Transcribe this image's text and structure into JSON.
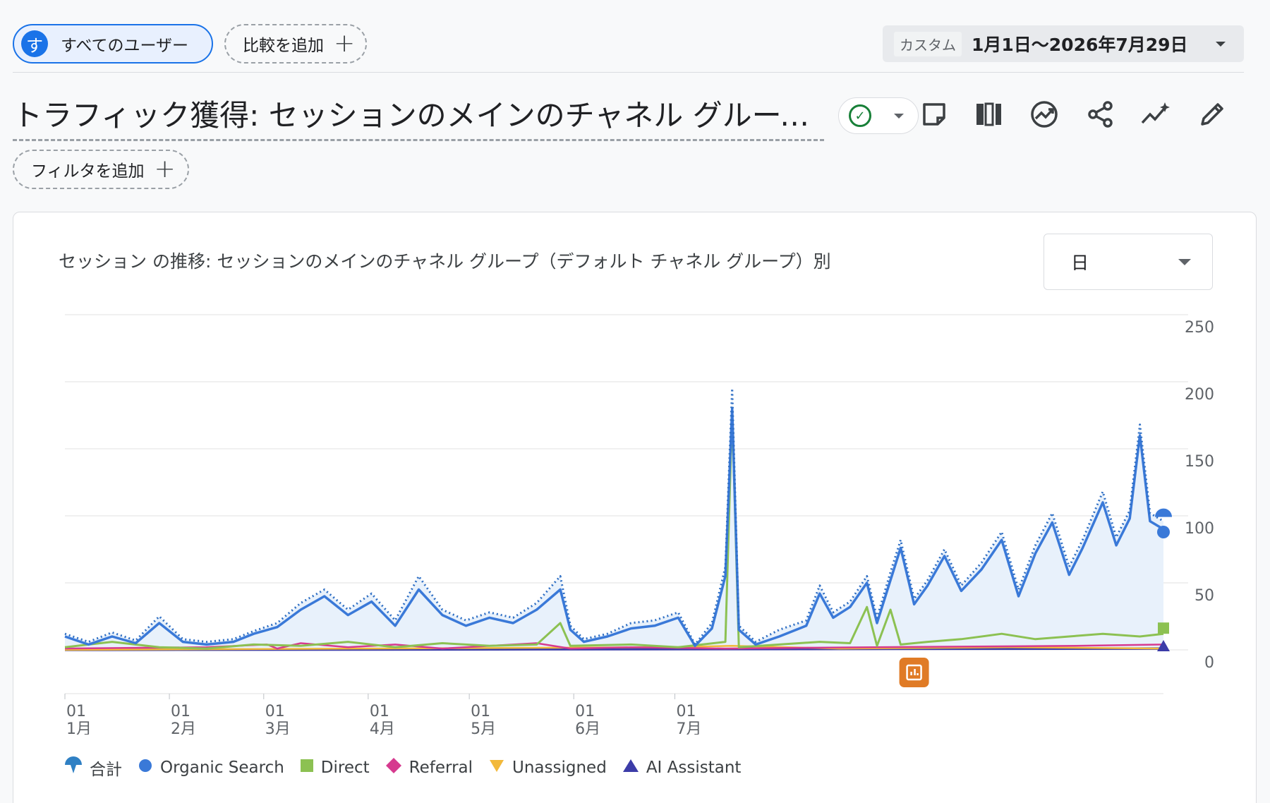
{
  "segment": {
    "avatar": "す",
    "label": "すべてのユーザー"
  },
  "compare": {
    "label": "比較を追加"
  },
  "date_picker": {
    "tag": "カスタム",
    "range": "1月1日〜2026年7月29日"
  },
  "page": {
    "title": "トラフィック獲得: セッションのメインのチャネル グループ（デフォルト チャネル グループ）"
  },
  "toolbar": {
    "status_icon": "check-circle-icon",
    "icons": [
      "note-icon",
      "compare-columns-icon",
      "insights-icon",
      "share-icon",
      "sparkle-trend-icon",
      "edit-icon"
    ]
  },
  "filter": {
    "label": "フィルタを追加"
  },
  "card": {
    "title": "セッション の推移: セッションのメインのチャネル グループ（デフォルト チャネル グループ）別",
    "period": "日"
  },
  "colors": {
    "organic": "#3a79d8",
    "direct": "#8cc152",
    "referral": "#d63a8f",
    "unassigned": "#f2b93b",
    "ai": "#3c3ca8",
    "total_fill": "#e8f1fb",
    "annotation": "#e07b26"
  },
  "chart_data": {
    "type": "line",
    "y_ticks": [
      "250",
      "200",
      "150",
      "100",
      "50",
      "0"
    ],
    "ylim": [
      0,
      250
    ],
    "x_ticks": [
      {
        "day": "01",
        "month": "1月"
      },
      {
        "day": "01",
        "month": "2月"
      },
      {
        "day": "01",
        "month": "3月"
      },
      {
        "day": "01",
        "month": "4月"
      },
      {
        "day": "01",
        "month": "5月"
      },
      {
        "day": "01",
        "month": "6月"
      },
      {
        "day": "01",
        "month": "7月"
      }
    ],
    "month_start_days": [
      0,
      31,
      59,
      90,
      120,
      151,
      181
    ],
    "series": [
      {
        "name": "合計",
        "key": "total",
        "points": [
          [
            0,
            12
          ],
          [
            7,
            6
          ],
          [
            14,
            13
          ],
          [
            21,
            7
          ],
          [
            28,
            25
          ],
          [
            35,
            8
          ],
          [
            42,
            6
          ],
          [
            50,
            8
          ],
          [
            56,
            14
          ],
          [
            63,
            20
          ],
          [
            70,
            35
          ],
          [
            77,
            45
          ],
          [
            84,
            30
          ],
          [
            91,
            42
          ],
          [
            98,
            22
          ],
          [
            105,
            55
          ],
          [
            112,
            30
          ],
          [
            119,
            22
          ],
          [
            126,
            28
          ],
          [
            133,
            24
          ],
          [
            140,
            35
          ],
          [
            147,
            55
          ],
          [
            150,
            18
          ],
          [
            154,
            8
          ],
          [
            161,
            12
          ],
          [
            168,
            20
          ],
          [
            175,
            22
          ],
          [
            182,
            28
          ],
          [
            187,
            4
          ],
          [
            192,
            20
          ],
          [
            196,
            62
          ],
          [
            198,
            195
          ],
          [
            200,
            18
          ],
          [
            205,
            6
          ],
          [
            212,
            15
          ],
          [
            220,
            22
          ],
          [
            224,
            48
          ],
          [
            228,
            28
          ],
          [
            233,
            36
          ],
          [
            238,
            55
          ],
          [
            241,
            24
          ],
          [
            245,
            58
          ],
          [
            248,
            82
          ],
          [
            252,
            38
          ],
          [
            256,
            52
          ],
          [
            261,
            75
          ],
          [
            266,
            48
          ],
          [
            272,
            65
          ],
          [
            278,
            88
          ],
          [
            283,
            45
          ],
          [
            288,
            78
          ],
          [
            293,
            102
          ],
          [
            298,
            62
          ],
          [
            302,
            82
          ],
          [
            308,
            118
          ],
          [
            312,
            84
          ],
          [
            316,
            104
          ],
          [
            319,
            168
          ],
          [
            322,
            102
          ],
          [
            326,
            96
          ]
        ]
      },
      {
        "name": "Organic Search",
        "key": "organic",
        "points": [
          [
            0,
            10
          ],
          [
            7,
            4
          ],
          [
            14,
            10
          ],
          [
            21,
            5
          ],
          [
            28,
            20
          ],
          [
            35,
            6
          ],
          [
            42,
            4
          ],
          [
            50,
            6
          ],
          [
            56,
            12
          ],
          [
            63,
            17
          ],
          [
            70,
            30
          ],
          [
            77,
            40
          ],
          [
            84,
            26
          ],
          [
            91,
            36
          ],
          [
            98,
            18
          ],
          [
            105,
            45
          ],
          [
            112,
            26
          ],
          [
            119,
            18
          ],
          [
            126,
            24
          ],
          [
            133,
            20
          ],
          [
            140,
            30
          ],
          [
            147,
            45
          ],
          [
            150,
            15
          ],
          [
            154,
            6
          ],
          [
            161,
            10
          ],
          [
            168,
            16
          ],
          [
            175,
            18
          ],
          [
            182,
            24
          ],
          [
            187,
            3
          ],
          [
            192,
            16
          ],
          [
            196,
            55
          ],
          [
            198,
            180
          ],
          [
            200,
            15
          ],
          [
            205,
            4
          ],
          [
            212,
            10
          ],
          [
            220,
            18
          ],
          [
            224,
            42
          ],
          [
            228,
            24
          ],
          [
            233,
            32
          ],
          [
            238,
            50
          ],
          [
            241,
            20
          ],
          [
            245,
            52
          ],
          [
            248,
            76
          ],
          [
            252,
            34
          ],
          [
            256,
            48
          ],
          [
            261,
            70
          ],
          [
            266,
            44
          ],
          [
            272,
            60
          ],
          [
            278,
            82
          ],
          [
            283,
            40
          ],
          [
            288,
            72
          ],
          [
            293,
            95
          ],
          [
            298,
            56
          ],
          [
            302,
            76
          ],
          [
            308,
            110
          ],
          [
            312,
            78
          ],
          [
            316,
            98
          ],
          [
            319,
            160
          ],
          [
            322,
            96
          ],
          [
            326,
            90
          ]
        ]
      },
      {
        "name": "Direct",
        "key": "direct",
        "points": [
          [
            0,
            2
          ],
          [
            14,
            6
          ],
          [
            28,
            2
          ],
          [
            42,
            1
          ],
          [
            56,
            4
          ],
          [
            70,
            3
          ],
          [
            84,
            6
          ],
          [
            98,
            2
          ],
          [
            112,
            5
          ],
          [
            126,
            3
          ],
          [
            140,
            4
          ],
          [
            147,
            20
          ],
          [
            150,
            3
          ],
          [
            168,
            4
          ],
          [
            182,
            2
          ],
          [
            196,
            6
          ],
          [
            198,
            178
          ],
          [
            200,
            2
          ],
          [
            212,
            4
          ],
          [
            224,
            6
          ],
          [
            233,
            5
          ],
          [
            238,
            32
          ],
          [
            241,
            3
          ],
          [
            245,
            30
          ],
          [
            248,
            4
          ],
          [
            256,
            6
          ],
          [
            266,
            8
          ],
          [
            278,
            12
          ],
          [
            288,
            8
          ],
          [
            298,
            10
          ],
          [
            308,
            12
          ],
          [
            319,
            10
          ],
          [
            326,
            12
          ]
        ]
      },
      {
        "name": "Referral",
        "key": "referral",
        "points": [
          [
            0,
            1
          ],
          [
            42,
            2
          ],
          [
            60,
            4
          ],
          [
            63,
            1
          ],
          [
            70,
            5
          ],
          [
            84,
            2
          ],
          [
            98,
            4
          ],
          [
            112,
            1
          ],
          [
            140,
            5
          ],
          [
            150,
            1
          ],
          [
            168,
            2
          ],
          [
            196,
            1
          ],
          [
            240,
            2
          ],
          [
            300,
            3
          ],
          [
            326,
            4
          ]
        ]
      },
      {
        "name": "Unassigned",
        "key": "unassigned",
        "points": [
          [
            0,
            0
          ],
          [
            90,
            1
          ],
          [
            180,
            2
          ],
          [
            198,
            3
          ],
          [
            230,
            1
          ],
          [
            280,
            2
          ],
          [
            326,
            1
          ]
        ]
      },
      {
        "name": "AI Assistant",
        "key": "ai",
        "points": [
          [
            0,
            0
          ],
          [
            326,
            1
          ]
        ]
      }
    ]
  },
  "legend": [
    {
      "key": "total",
      "label": "合計"
    },
    {
      "key": "organic",
      "label": "Organic Search"
    },
    {
      "key": "direct",
      "label": "Direct"
    },
    {
      "key": "referral",
      "label": "Referral"
    },
    {
      "key": "unassigned",
      "label": "Unassigned"
    },
    {
      "key": "ai",
      "label": "AI Assistant"
    }
  ]
}
